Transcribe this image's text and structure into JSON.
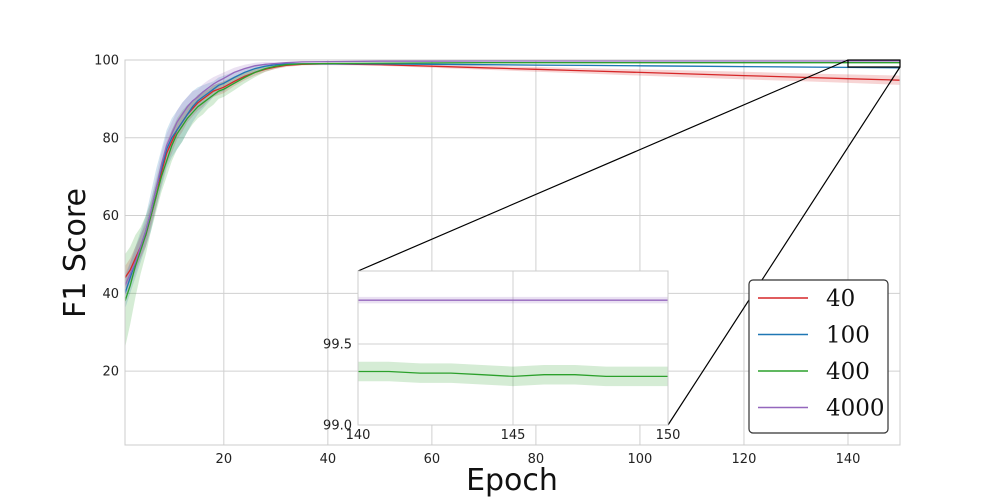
{
  "chart_data": {
    "type": "line",
    "xlabel": "Epoch",
    "ylabel": "F1 Score",
    "xlim": [
      1,
      150
    ],
    "ylim": [
      1,
      100
    ],
    "xticks": [
      20,
      40,
      60,
      80,
      100,
      120,
      140
    ],
    "yticks": [
      20,
      40,
      60,
      80,
      100
    ],
    "grid": true,
    "legend_position": "bottom-right",
    "series": [
      {
        "name": "40",
        "color": "#d62728",
        "x": [
          1,
          2,
          3,
          4,
          5,
          6,
          7,
          8,
          9,
          10,
          11,
          12,
          13,
          14,
          15,
          16,
          17,
          18,
          19,
          20,
          22,
          24,
          26,
          28,
          30,
          32,
          35,
          40,
          50,
          60,
          70,
          80,
          90,
          100,
          110,
          120,
          130,
          140,
          150
        ],
        "y": [
          44,
          46,
          49,
          52,
          55,
          60,
          65,
          71,
          76,
          79,
          82,
          84,
          86,
          87.5,
          89,
          90,
          91,
          92,
          92.5,
          93,
          94.5,
          95.8,
          96.8,
          97.6,
          98.2,
          98.6,
          98.9,
          99,
          98.8,
          98.4,
          98,
          97.6,
          97.2,
          96.8,
          96.4,
          96,
          95.6,
          95.2,
          94.8
        ],
        "band": [
          3,
          3,
          3,
          3,
          3,
          3,
          3,
          3,
          3,
          3,
          2.5,
          2.5,
          2,
          2,
          2,
          2,
          1.5,
          1.5,
          1.5,
          1.5,
          1.2,
          1,
          0.8,
          0.6,
          0.5,
          0.4,
          0.3,
          0.3,
          0.3,
          0.4,
          0.5,
          0.6,
          0.7,
          0.8,
          0.9,
          1,
          1,
          1.1,
          1.2
        ]
      },
      {
        "name": "100",
        "color": "#1f77b4",
        "x": [
          1,
          2,
          3,
          4,
          5,
          6,
          7,
          8,
          9,
          10,
          11,
          12,
          13,
          14,
          15,
          16,
          17,
          18,
          19,
          20,
          22,
          24,
          26,
          28,
          30,
          32,
          35,
          40,
          50,
          60,
          70,
          80,
          90,
          100,
          110,
          120,
          130,
          140,
          150
        ],
        "y": [
          40,
          44,
          48,
          52,
          56,
          61,
          67,
          72,
          77,
          80,
          82,
          84,
          86,
          88,
          89.5,
          90.5,
          91.5,
          92.5,
          93.5,
          94,
          95.5,
          96.8,
          97.8,
          98.4,
          98.8,
          99,
          99,
          99,
          99,
          98.9,
          98.8,
          98.7,
          98.6,
          98.5,
          98.4,
          98.3,
          98.2,
          98.1,
          98
        ],
        "band": [
          4,
          4,
          4,
          4,
          4,
          5,
          5,
          5,
          5,
          5,
          5,
          5,
          4.5,
          4,
          3.5,
          3,
          2.5,
          2,
          2,
          2,
          1.5,
          1.2,
          1,
          0.6,
          0.4,
          0.3,
          0.2,
          0.2,
          0.2,
          0.2,
          0.2,
          0.2,
          0.2,
          0.2,
          0.2,
          0.2,
          0.2,
          0.2,
          0.2
        ]
      },
      {
        "name": "400",
        "color": "#2ca02c",
        "x": [
          1,
          2,
          3,
          4,
          5,
          6,
          7,
          8,
          9,
          10,
          11,
          12,
          13,
          14,
          15,
          16,
          17,
          18,
          19,
          20,
          22,
          24,
          26,
          28,
          30,
          32,
          35,
          40,
          50,
          60,
          70,
          80,
          90,
          100,
          110,
          120,
          130,
          140,
          150
        ],
        "y": [
          38,
          42,
          47,
          51,
          55,
          60,
          65,
          70,
          74,
          78,
          81,
          83,
          85,
          86.5,
          88,
          89,
          90,
          91,
          92,
          92.5,
          94,
          95.5,
          96.8,
          97.8,
          98.4,
          98.8,
          99,
          99.1,
          99.2,
          99.25,
          99.3,
          99.3,
          99.3,
          99.3,
          99.3,
          99.3,
          99.3,
          99.3,
          99.3
        ],
        "band": [
          12,
          10,
          8,
          6,
          5,
          4,
          4,
          4,
          4,
          4,
          4,
          4,
          3.5,
          3,
          3,
          3,
          2.5,
          2.5,
          2,
          2,
          1.8,
          1.5,
          1.2,
          0.8,
          0.6,
          0.4,
          0.3,
          0.2,
          0.1,
          0.1,
          0.1,
          0.1,
          0.1,
          0.1,
          0.1,
          0.1,
          0.1,
          0.1,
          0.1
        ]
      },
      {
        "name": "4000",
        "color": "#9467bd",
        "x": [
          1,
          2,
          3,
          4,
          5,
          6,
          7,
          8,
          9,
          10,
          11,
          12,
          13,
          14,
          15,
          16,
          17,
          18,
          19,
          20,
          22,
          24,
          26,
          28,
          30,
          32,
          35,
          40,
          50,
          60,
          70,
          80,
          90,
          100,
          110,
          120,
          130,
          140,
          150
        ],
        "y": [
          42,
          45,
          48,
          52,
          56,
          61,
          67,
          73,
          78,
          81,
          84,
          86,
          88,
          89.5,
          90.5,
          91.8,
          92.8,
          93.8,
          94.6,
          95.3,
          96.8,
          97.8,
          98.5,
          98.9,
          99.1,
          99.3,
          99.5,
          99.6,
          99.7,
          99.7,
          99.75,
          99.75,
          99.75,
          99.75,
          99.75,
          99.75,
          99.75,
          99.75,
          99.75
        ],
        "band": [
          3,
          3,
          3,
          3,
          3,
          3,
          3,
          3,
          3,
          3,
          3,
          3,
          2.5,
          2.5,
          2,
          2,
          2,
          1.8,
          1.6,
          1.5,
          1.2,
          1,
          0.8,
          0.6,
          0.4,
          0.3,
          0.2,
          0.1,
          0.05,
          0.05,
          0.05,
          0.05,
          0.05,
          0.05,
          0.05,
          0.05,
          0.05,
          0.05,
          0.05
        ]
      }
    ],
    "inset": {
      "xlim": [
        140,
        150
      ],
      "ylim": [
        99.0,
        99.95
      ],
      "xticks": [
        140,
        145,
        150
      ],
      "yticks": [
        99.0,
        99.5
      ],
      "yticklabels": [
        "99.0",
        "99.5"
      ],
      "series": [
        {
          "name": "400",
          "color": "#2ca02c",
          "x": [
            140,
            141,
            142,
            143,
            144,
            145,
            146,
            147,
            148,
            149,
            150
          ],
          "y": [
            99.33,
            99.33,
            99.32,
            99.32,
            99.31,
            99.3,
            99.31,
            99.31,
            99.3,
            99.3,
            99.3
          ],
          "band": [
            0.06,
            0.06,
            0.06,
            0.06,
            0.06,
            0.06,
            0.06,
            0.06,
            0.06,
            0.06,
            0.06
          ]
        },
        {
          "name": "4000",
          "color": "#9467bd",
          "x": [
            140,
            141,
            142,
            143,
            144,
            145,
            146,
            147,
            148,
            149,
            150
          ],
          "y": [
            99.77,
            99.77,
            99.77,
            99.77,
            99.77,
            99.77,
            99.77,
            99.77,
            99.77,
            99.77,
            99.77
          ],
          "band": [
            0.02,
            0.02,
            0.02,
            0.02,
            0.02,
            0.02,
            0.02,
            0.02,
            0.02,
            0.02,
            0.02
          ]
        }
      ],
      "zoom_region": {
        "x": [
          140,
          150
        ],
        "y": [
          98.2,
          100
        ]
      }
    }
  }
}
